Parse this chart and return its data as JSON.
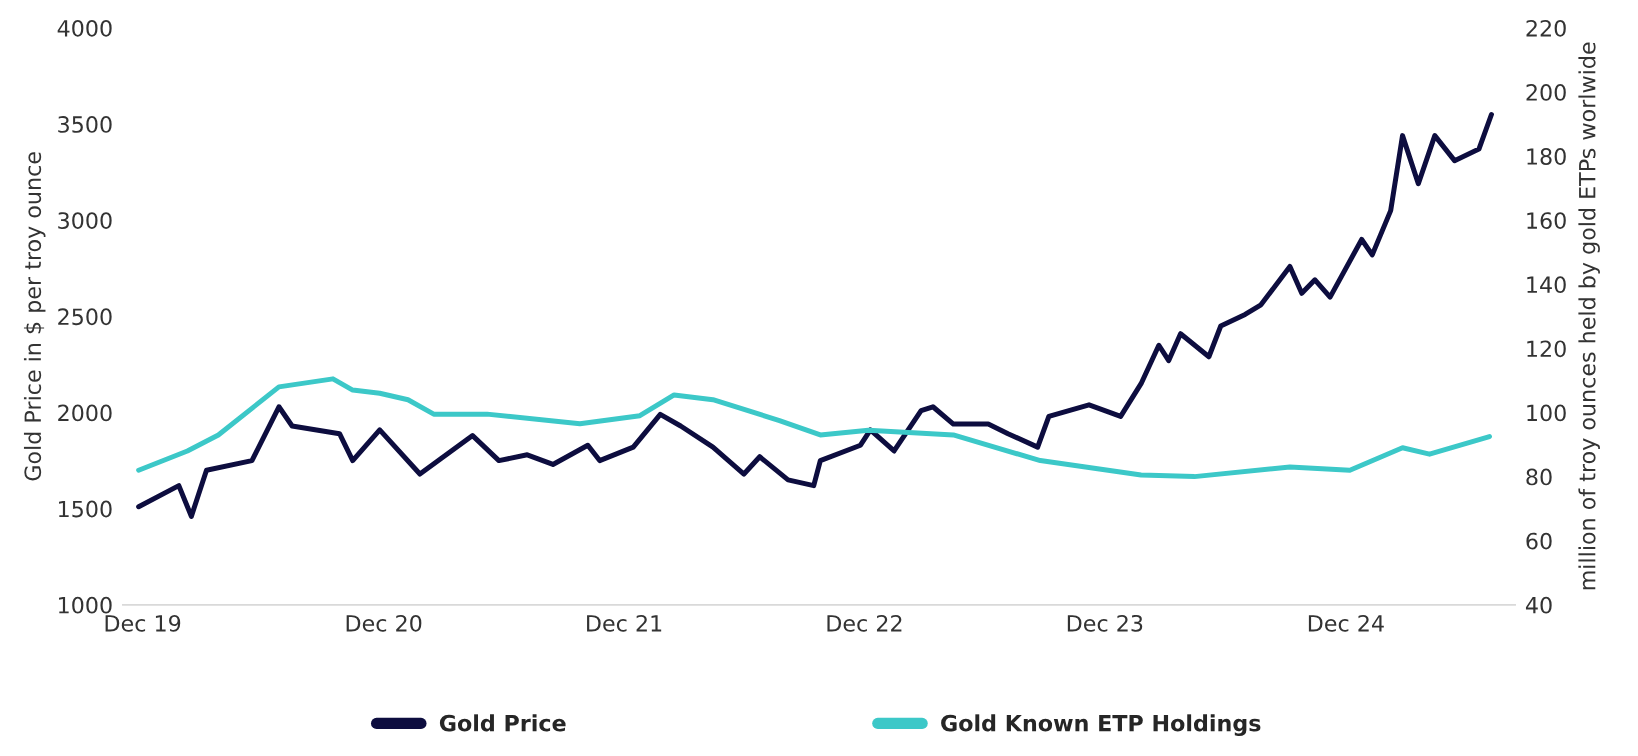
{
  "chart_data": {
    "type": "line",
    "ylabel": "Gold Price in $ per troy ounce",
    "y2label": "million of troy ounces held by gold ETPs worlwide",
    "xlim": [
      "2019-11-01",
      "2025-08-15"
    ],
    "xticks": [
      {
        "value": "2019-12-01",
        "label": "Dec 19"
      },
      {
        "value": "2020-12-01",
        "label": "Dec 20"
      },
      {
        "value": "2021-12-01",
        "label": "Dec 21"
      },
      {
        "value": "2022-12-01",
        "label": "Dec 22"
      },
      {
        "value": "2023-12-01",
        "label": "Dec 23"
      },
      {
        "value": "2024-12-01",
        "label": "Dec 24"
      }
    ],
    "ylim": [
      1000,
      4000
    ],
    "yticks": [
      1000,
      1500,
      2000,
      2500,
      3000,
      3500,
      4000
    ],
    "y2lim": [
      40,
      220
    ],
    "y2ticks": [
      40,
      60,
      80,
      100,
      120,
      140,
      160,
      180,
      200,
      220
    ],
    "grid": false,
    "legend": "bottom",
    "line_style": "solid",
    "marker": "none",
    "series": [
      {
        "name": "Gold Price",
        "color": "#0d0d3f",
        "x": [
          "2019-11-25",
          "2020-01-25",
          "2020-02-13",
          "2020-03-07",
          "2020-05-15",
          "2020-06-25",
          "2020-07-15",
          "2020-09-25",
          "2020-10-15",
          "2020-11-25",
          "2021-01-25",
          "2021-04-15",
          "2021-05-25",
          "2021-07-07",
          "2021-08-15",
          "2021-10-07",
          "2021-10-25",
          "2021-12-15",
          "2022-01-25",
          "2022-02-25",
          "2022-04-15",
          "2022-06-01",
          "2022-06-25",
          "2022-08-07",
          "2022-09-15",
          "2022-09-25",
          "2022-11-25",
          "2022-12-10",
          "2023-01-15",
          "2023-02-25",
          "2023-03-15",
          "2023-04-15",
          "2023-06-07",
          "2023-07-07",
          "2023-08-21",
          "2023-09-07",
          "2023-11-07",
          "2023-12-25",
          "2024-01-25",
          "2024-02-21",
          "2024-03-07",
          "2024-03-25",
          "2024-05-07",
          "2024-05-25",
          "2024-07-01",
          "2024-07-25",
          "2024-09-07",
          "2024-09-25",
          "2024-10-15",
          "2024-11-07",
          "2024-12-25",
          "2025-01-10",
          "2025-02-07",
          "2025-02-25",
          "2025-03-21",
          "2025-04-15",
          "2025-05-15",
          "2025-06-21",
          "2025-07-10"
        ],
        "values": [
          1510,
          1620,
          1460,
          1700,
          1750,
          2030,
          1930,
          1890,
          1750,
          1910,
          1680,
          1880,
          1750,
          1780,
          1730,
          1830,
          1750,
          1820,
          1990,
          1930,
          1820,
          1680,
          1770,
          1650,
          1620,
          1750,
          1830,
          1910,
          1800,
          2010,
          2030,
          1940,
          1940,
          1890,
          1820,
          1980,
          2040,
          1980,
          2150,
          2350,
          2270,
          2410,
          2290,
          2450,
          2510,
          2560,
          2760,
          2620,
          2690,
          2600,
          2900,
          2820,
          3050,
          3440,
          3190,
          3440,
          3310,
          3370,
          3550
        ]
      },
      {
        "name": "Gold Known ETP Holdings",
        "color": "#3cc8c8",
        "axis": "y2",
        "x": [
          "2019-11-25",
          "2020-02-07",
          "2020-03-25",
          "2020-06-25",
          "2020-09-15",
          "2020-10-15",
          "2020-11-25",
          "2021-01-07",
          "2021-02-15",
          "2021-05-07",
          "2021-09-25",
          "2021-12-25",
          "2022-02-15",
          "2022-04-15",
          "2022-07-25",
          "2022-09-25",
          "2022-12-07",
          "2023-04-15",
          "2023-08-25",
          "2024-01-25",
          "2024-04-15",
          "2024-09-07",
          "2024-12-07",
          "2025-02-25",
          "2025-04-07",
          "2025-07-07"
        ],
        "values": [
          82,
          88,
          93,
          108,
          110.5,
          107,
          106,
          104,
          99.5,
          99.5,
          96.5,
          99,
          105.5,
          104,
          97.5,
          93,
          94.5,
          93,
          85,
          80.5,
          80,
          83,
          82,
          89,
          87,
          92.5
        ]
      }
    ]
  }
}
